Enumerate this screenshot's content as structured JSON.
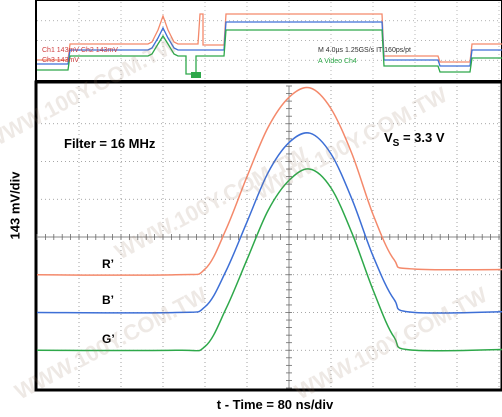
{
  "chart_data": {
    "type": "line",
    "title": "",
    "xlabel": "t - Time = 80 ns/div",
    "ylabel": "143 mV/div",
    "annotations": {
      "filter": "Filter = 16 MHz",
      "supply_prefix": "V",
      "supply_subscript": "S",
      "supply_value": " = 3.3 V"
    },
    "grid": true,
    "x_divisions": 12,
    "y_divisions": 8,
    "xlim": [
      0,
      12
    ],
    "ylim": [
      0,
      8
    ],
    "x_unit": "div",
    "y_unit": "div",
    "series": [
      {
        "name": "R’",
        "color": "#f4896b",
        "x": [
          0,
          3.3,
          4.0,
          4.5,
          5.0,
          5.5,
          6.0,
          6.5,
          7.0,
          7.5,
          8.0,
          8.5,
          9.0,
          12
        ],
        "y": [
          3.0,
          3.0,
          3.15,
          4.2,
          5.6,
          6.9,
          7.7,
          7.95,
          7.4,
          6.2,
          4.6,
          3.4,
          3.15,
          3.15
        ]
      },
      {
        "name": "B’",
        "color": "#3d6fd6",
        "x": [
          0,
          3.3,
          4.0,
          4.5,
          5.0,
          5.5,
          6.0,
          6.5,
          7.0,
          7.5,
          8.0,
          8.5,
          9.0,
          12
        ],
        "y": [
          2.0,
          2.0,
          2.15,
          3.1,
          4.4,
          5.7,
          6.5,
          6.75,
          6.2,
          5.0,
          3.5,
          2.35,
          2.0,
          2.05
        ]
      },
      {
        "name": "G’",
        "color": "#2ea84a",
        "x": [
          0,
          3.3,
          4.0,
          4.5,
          5.0,
          5.5,
          6.0,
          6.5,
          7.0,
          7.5,
          8.0,
          8.5,
          9.0,
          12
        ],
        "y": [
          1.0,
          1.0,
          1.1,
          2.1,
          3.4,
          4.7,
          5.5,
          5.8,
          5.3,
          4.1,
          2.6,
          1.35,
          1.0,
          1.05
        ]
      }
    ]
  },
  "overview": {
    "readout_left": "Ch1    143mV      Ch2    143mV",
    "readout_left_ch3": "Ch3    143mV",
    "readout_right": "M 4.0µs 1.25GS/s    IT 160ps/pt",
    "readout_right_sub": "A  Video    Ch4"
  },
  "watermark": "WWW.100Y.COM.TW"
}
